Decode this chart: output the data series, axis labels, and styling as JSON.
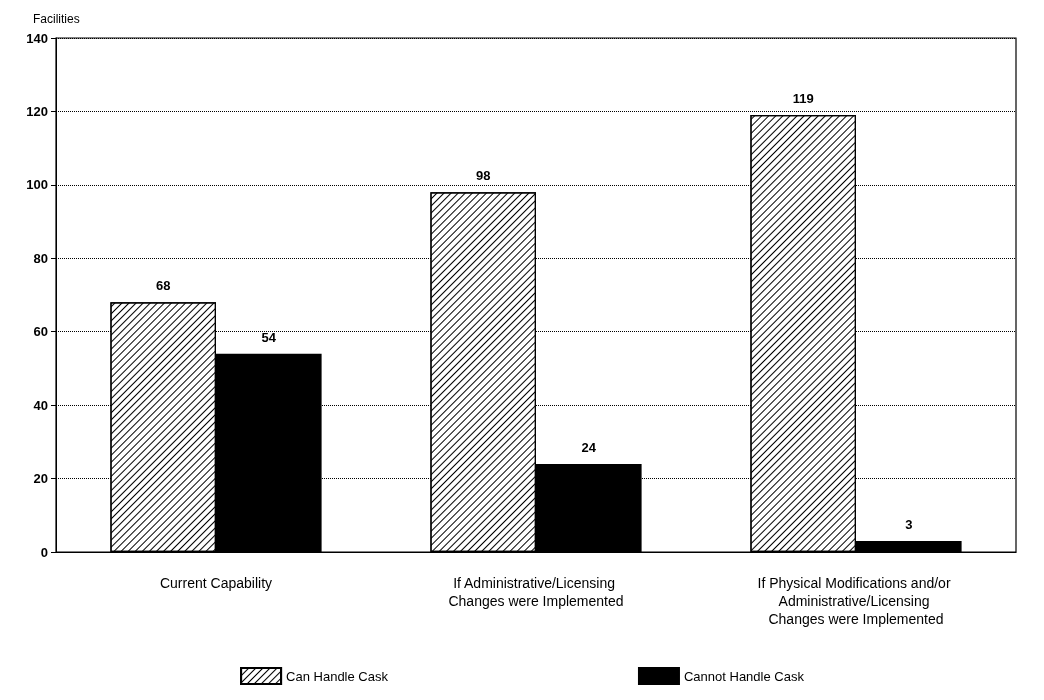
{
  "chart_data": {
    "type": "bar",
    "ylabel": "Facilities",
    "categories": [
      "Current Capability",
      "If Administrative/Licensing Changes were Implemented",
      "If Physical Modifications and/or Administrative/Licensing Changes were Implemented"
    ],
    "series": [
      {
        "name": "Can Handle Cask",
        "color": "#ffffff",
        "values": [
          68,
          98,
          119
        ]
      },
      {
        "name": "Cannot Handle Cask",
        "color": "#000000",
        "values": [
          54,
          24,
          3
        ]
      }
    ],
    "ylim": [
      0,
      140
    ],
    "yticks": [
      0,
      20,
      40,
      60,
      80,
      100,
      120,
      140
    ],
    "grid": "y",
    "legend": "bottom",
    "data_labels": true,
    "line_style": "dotted"
  }
}
